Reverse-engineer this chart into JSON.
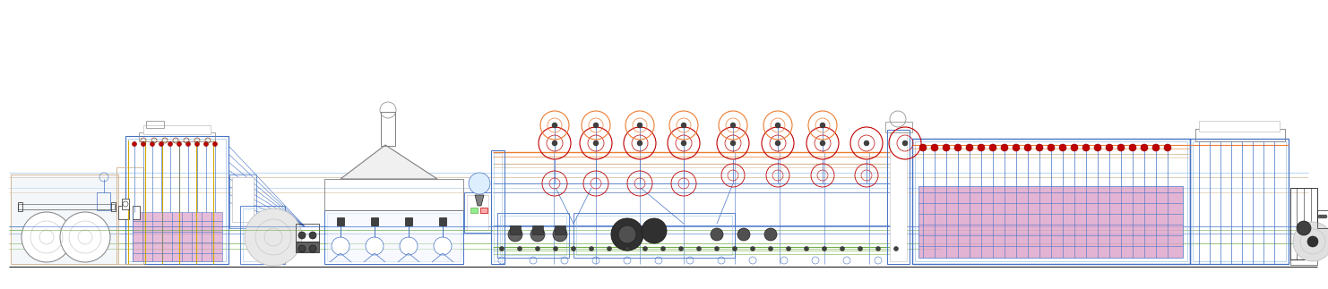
{
  "bg_color": "#ffffff",
  "blue": "#4472c4",
  "lblue": "#9dc3e6",
  "gray": "#808080",
  "lgray": "#c0c0c0",
  "dark": "#202020",
  "red": "#c00000",
  "orange": "#ed7d31",
  "yellow": "#d4aa00",
  "green": "#70ad47",
  "pink": "#dda0c8",
  "lpurple": "#c8a0d8",
  "tan": "#d4b896",
  "flblue": "#dce6f1",
  "figsize": [
    14.82,
    3.23
  ],
  "dpi": 100
}
